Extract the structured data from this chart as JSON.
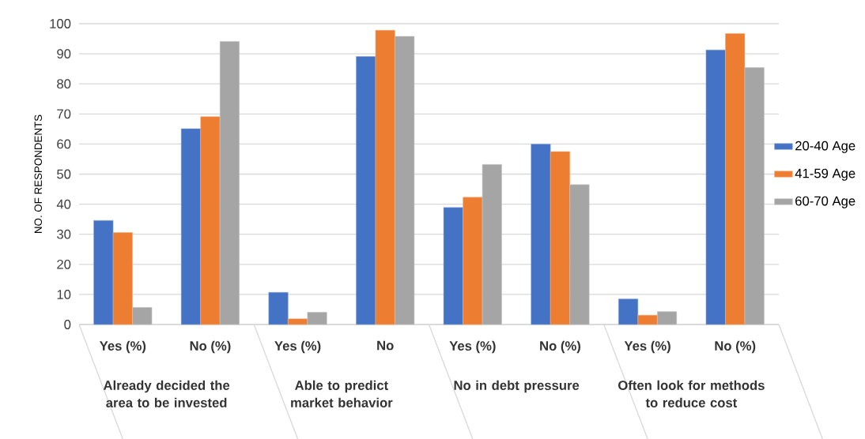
{
  "chart_data": {
    "type": "bar",
    "ylabel": "NO. OF RESPONDENTS",
    "categories": [
      "Yes (%)",
      "No (%)",
      "Yes (%)",
      "No",
      "Yes (%)",
      "No (%)",
      "Yes (%)",
      "No (%)"
    ],
    "annotations": [
      "Already decided the area to be invested",
      "Able to predict market behavior",
      "No in debt pressure",
      "Often look for methods to reduce cost"
    ],
    "series": [
      {
        "name": "20-40 Age",
        "color": "#4472c4",
        "values": [
          34.6,
          65.1,
          10.7,
          89.1,
          38.9,
          60.0,
          8.5,
          91.3
        ]
      },
      {
        "name": "41-59 Age",
        "color": "#ed7d31",
        "values": [
          30.6,
          69.1,
          1.9,
          97.8,
          42.3,
          57.5,
          3.1,
          96.7
        ]
      },
      {
        "name": "60-70 Age",
        "color": "#a5a5a5",
        "values": [
          5.7,
          94.1,
          4.1,
          95.8,
          53.2,
          46.5,
          4.3,
          85.4
        ]
      }
    ],
    "ylim": [
      0,
      100
    ],
    "yticks": [
      0,
      10,
      20,
      30,
      40,
      50,
      60,
      70,
      80,
      90,
      100
    ],
    "grid": "y",
    "legend": "right"
  }
}
